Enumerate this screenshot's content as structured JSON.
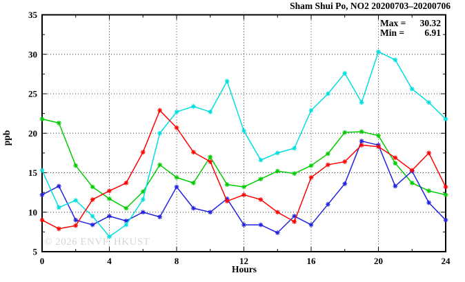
{
  "window": {
    "title": "Sham Shui Po, NO2 20200703–20200706"
  },
  "stats": {
    "max_label": "Max =",
    "max_value": "30.32",
    "min_label": "Min =",
    "min_value": "6.91"
  },
  "watermark": "© 2026 ENVF, HKUST",
  "chart_data": {
    "type": "line",
    "title": "Sham Shui Po, NO2 20200703–20200706",
    "xlabel": "Hours",
    "ylabel": "ppb",
    "xlim": [
      0,
      24
    ],
    "ylim": [
      5,
      35
    ],
    "x_major_ticks": [
      0,
      4,
      8,
      12,
      16,
      20,
      24
    ],
    "x_minor_step": 2,
    "y_major_ticks": [
      5,
      10,
      15,
      20,
      25,
      30,
      35
    ],
    "y_minor_step": 2.5,
    "grid": true,
    "legend_position": "none",
    "annotations": {
      "max": 30.32,
      "min": 6.91
    },
    "x": [
      0,
      1,
      2,
      3,
      4,
      5,
      6,
      7,
      8,
      9,
      10,
      11,
      12,
      13,
      14,
      15,
      16,
      17,
      18,
      19,
      20,
      21,
      22,
      23,
      24
    ],
    "series": [
      {
        "name": "red",
        "color": "#ff0000",
        "marker": "asterisk",
        "values": [
          9.0,
          7.9,
          8.3,
          11.6,
          12.7,
          13.7,
          17.6,
          22.9,
          20.7,
          17.6,
          16.4,
          11.4,
          12.2,
          11.6,
          10.0,
          8.8,
          14.4,
          16.0,
          16.4,
          18.5,
          18.3,
          16.9,
          15.3,
          17.5,
          13.2
        ]
      },
      {
        "name": "green",
        "color": "#00cc00",
        "marker": "asterisk",
        "values": [
          21.8,
          21.3,
          15.9,
          13.2,
          11.7,
          10.5,
          12.6,
          16.0,
          14.4,
          13.7,
          17.0,
          13.5,
          13.2,
          14.2,
          15.2,
          14.9,
          15.9,
          17.4,
          20.1,
          20.2,
          19.7,
          16.2,
          13.7,
          12.7,
          12.2
        ]
      },
      {
        "name": "blue",
        "color": "#2222dd",
        "marker": "asterisk",
        "values": [
          12.2,
          13.3,
          9.0,
          8.4,
          9.5,
          8.9,
          10.0,
          9.4,
          13.2,
          10.5,
          10.0,
          11.7,
          8.4,
          8.4,
          7.4,
          9.5,
          8.4,
          11.0,
          13.6,
          19.0,
          18.5,
          13.3,
          15.2,
          11.2,
          9.0
        ]
      },
      {
        "name": "cyan",
        "color": "#00dede",
        "marker": "asterisk",
        "values": [
          15.3,
          10.6,
          11.5,
          9.5,
          6.91,
          8.4,
          11.6,
          20.0,
          22.7,
          23.4,
          22.7,
          26.6,
          20.3,
          16.6,
          17.5,
          18.1,
          22.9,
          25.0,
          27.6,
          23.9,
          30.32,
          29.3,
          25.6,
          23.9,
          21.8
        ]
      }
    ]
  }
}
